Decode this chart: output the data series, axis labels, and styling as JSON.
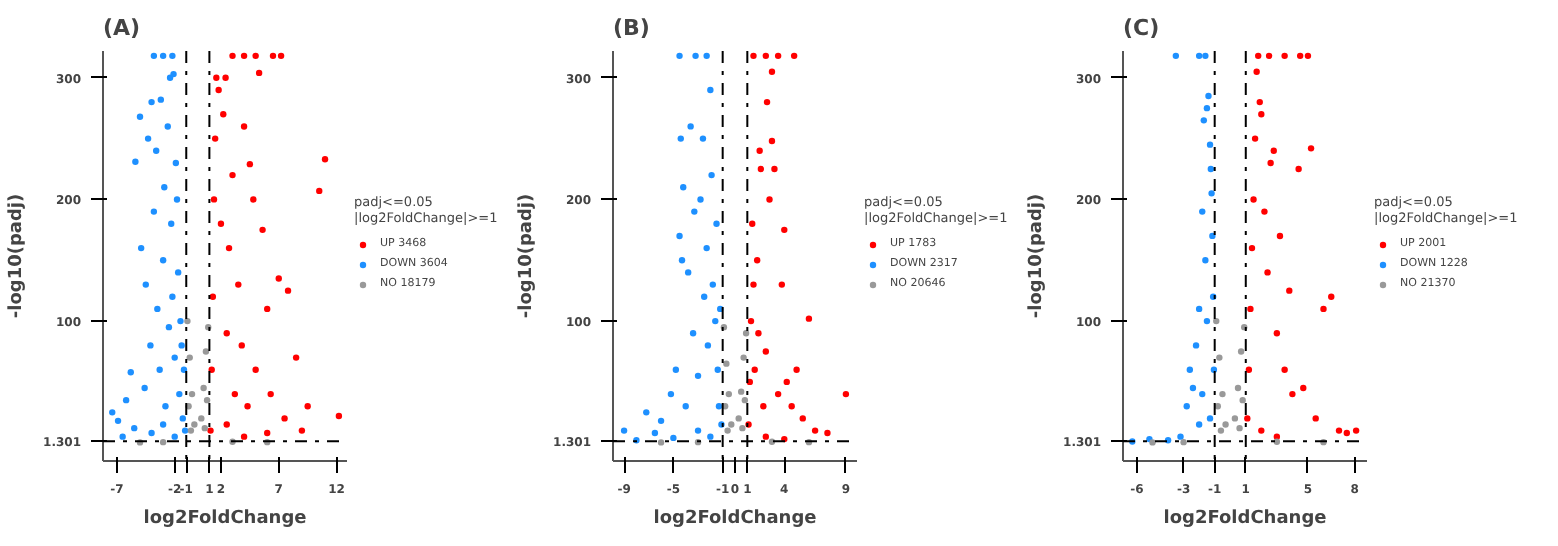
{
  "chart_data": [
    {
      "type": "scatter",
      "title": "(A)",
      "xlabel": "log2FoldChange",
      "ylabel": "-log10(padj)",
      "legend_title": "padj<=0.05\n|log2FoldChange|>=1",
      "legend": "right",
      "grid": false,
      "marker": "circle",
      "xlim": [
        -8.2,
        12.9
      ],
      "ylim": [
        -15,
        322
      ],
      "xticks": [
        -7,
        -2,
        -1,
        1,
        2,
        7,
        12
      ],
      "yticks": [
        1.301,
        100,
        200,
        300
      ],
      "ref_lines": [
        {
          "axis": "x",
          "value": -1,
          "line_style": "dashdot"
        },
        {
          "axis": "x",
          "value": 1,
          "line_style": "dashdot"
        },
        {
          "axis": "y",
          "value": 1.301,
          "line_style": "dashdot"
        }
      ],
      "series": [
        {
          "name": "UP 3468",
          "color": "#ff0000",
          "x": [
            1.1,
            1.2,
            1.3,
            1.4,
            1.5,
            1.6,
            1.8,
            2.0,
            2.2,
            2.4,
            2.5,
            2.7,
            3.0,
            3.2,
            3.5,
            3.8,
            4.0,
            4.3,
            4.5,
            4.8,
            5.0,
            5.3,
            5.6,
            6.0,
            6.3,
            7.0,
            7.5,
            7.8,
            8.5,
            9.5,
            10.5,
            11.0,
            12.2,
            9.0,
            6.0,
            4.0,
            2.5,
            3.0,
            4.0,
            5.0,
            7.2,
            6.5
          ],
          "values": [
            10,
            60,
            120,
            200,
            250,
            300,
            290,
            180,
            270,
            300,
            90,
            160,
            220,
            40,
            130,
            80,
            260,
            30,
            229,
            200,
            60,
            304,
            175,
            110,
            40,
            135,
            20,
            125,
            70,
            30,
            207,
            233,
            22,
            10,
            8,
            5,
            15,
            318,
            318,
            318,
            318,
            318
          ]
        },
        {
          "name": "DOWN 3604",
          "color": "#1e90ff",
          "x": [
            -7.4,
            -6.9,
            -6.2,
            -5.8,
            -5.4,
            -5.0,
            -4.9,
            -4.6,
            -4.5,
            -4.3,
            -4.1,
            -4.0,
            -3.8,
            -3.6,
            -3.5,
            -3.3,
            -3.2,
            -3.0,
            -2.9,
            -2.8,
            -2.6,
            -2.5,
            -2.4,
            -2.3,
            -2.2,
            -2.1,
            -2.0,
            -1.9,
            -1.8,
            -1.7,
            -1.6,
            -1.5,
            -1.4,
            -1.3,
            -1.2,
            -1.1,
            -5.5,
            -4.0,
            -3.0,
            -2.0,
            -6.5,
            -3.8,
            -3.0,
            -2.2
          ],
          "values": [
            25,
            18,
            35,
            58,
            231,
            268,
            160,
            45,
            130,
            250,
            80,
            280,
            190,
            240,
            110,
            60,
            282,
            150,
            210,
            30,
            260,
            95,
            300,
            180,
            120,
            303,
            70,
            230,
            200,
            140,
            40,
            100,
            80,
            20,
            60,
            10,
            12,
            8,
            15,
            5,
            5,
            318,
            318,
            318
          ]
        },
        {
          "name": "NO 18179",
          "color": "#999999",
          "x": [
            -0.9,
            -0.8,
            -0.7,
            -0.6,
            -0.5,
            -0.3,
            0.3,
            0.5,
            0.6,
            0.7,
            0.8,
            0.9,
            -3.0,
            3.0,
            -5.0,
            6.0
          ],
          "values": [
            100,
            30,
            70,
            10,
            40,
            15,
            20,
            45,
            12,
            75,
            35,
            95,
            0.5,
            0.8,
            0.3,
            0.5
          ]
        }
      ]
    },
    {
      "type": "scatter",
      "title": "(B)",
      "xlabel": "log2FoldChange",
      "ylabel": "-log10(padj)",
      "legend_title": "padj<=0.05\n|log2FoldChange|>=1",
      "legend": "right",
      "grid": false,
      "marker": "circle",
      "xlim": [
        -9.9,
        9.9
      ],
      "ylim": [
        -15,
        322
      ],
      "xticks": [
        -9,
        -5,
        -1,
        0,
        1,
        4,
        9
      ],
      "yticks": [
        1.301,
        100,
        200,
        300
      ],
      "ref_lines": [
        {
          "axis": "x",
          "value": -1,
          "line_style": "dashdot"
        },
        {
          "axis": "x",
          "value": 1,
          "line_style": "dashdot"
        },
        {
          "axis": "y",
          "value": 1.301,
          "line_style": "dashdot"
        }
      ],
      "series": [
        {
          "name": "UP 1783",
          "color": "#ff0000",
          "x": [
            1.1,
            1.2,
            1.3,
            1.4,
            1.5,
            1.6,
            1.8,
            1.9,
            2.0,
            2.1,
            2.3,
            2.5,
            2.6,
            2.8,
            3.0,
            3.0,
            3.2,
            3.5,
            3.8,
            4.0,
            4.2,
            4.6,
            5.0,
            5.5,
            6.0,
            6.5,
            7.5,
            9.0,
            2.5,
            4.0,
            1.5,
            2.5,
            3.5,
            4.8
          ],
          "values": [
            15,
            50,
            100,
            180,
            130,
            60,
            150,
            90,
            240,
            225,
            30,
            75,
            280,
            200,
            248,
            305,
            225,
            40,
            130,
            175,
            50,
            30,
            60,
            20,
            102,
            10,
            8,
            40,
            5,
            3,
            318,
            318,
            318,
            318
          ]
        },
        {
          "name": "DOWN 2317",
          "color": "#1e90ff",
          "x": [
            -9.0,
            -7.2,
            -6.5,
            -6.0,
            -5.2,
            -4.8,
            -4.5,
            -4.4,
            -4.3,
            -4.2,
            -4.0,
            -3.8,
            -3.6,
            -3.4,
            -3.3,
            -3.0,
            -2.8,
            -2.6,
            -2.5,
            -2.3,
            -2.2,
            -2.0,
            -1.9,
            -1.8,
            -1.6,
            -1.5,
            -1.4,
            -1.3,
            -1.2,
            -1.1,
            -5.0,
            -3.0,
            -2.0,
            -8.0,
            -4.5,
            -3.2,
            -2.3
          ],
          "values": [
            10,
            25,
            8,
            18,
            40,
            60,
            170,
            250,
            150,
            210,
            30,
            140,
            260,
            90,
            190,
            55,
            200,
            250,
            120,
            160,
            80,
            290,
            220,
            130,
            100,
            180,
            60,
            30,
            110,
            15,
            4,
            10,
            5,
            2,
            318,
            318,
            318
          ]
        },
        {
          "name": "NO 20646",
          "color": "#999999",
          "x": [
            -0.9,
            -0.8,
            -0.7,
            -0.6,
            -0.5,
            -0.3,
            0.3,
            0.5,
            0.6,
            0.7,
            0.8,
            0.9,
            -3.0,
            3.0,
            -6.0,
            6.0
          ],
          "values": [
            95,
            30,
            65,
            10,
            40,
            15,
            20,
            42,
            12,
            70,
            35,
            90,
            0.5,
            0.8,
            0.3,
            0.5
          ]
        }
      ]
    },
    {
      "type": "scatter",
      "title": "(C)",
      "xlabel": "log2FoldChange",
      "ylabel": "-log10(padj)",
      "legend_title": "padj<=0.05\n|log2FoldChange|>=1",
      "legend": "right",
      "grid": false,
      "marker": "circle",
      "xlim": [
        -6.9,
        8.8
      ],
      "ylim": [
        -15,
        322
      ],
      "xticks": [
        -6,
        -3,
        -1,
        1,
        5,
        8
      ],
      "yticks": [
        1.301,
        100,
        200,
        300
      ],
      "ref_lines": [
        {
          "axis": "x",
          "value": -1,
          "line_style": "dashdot"
        },
        {
          "axis": "x",
          "value": 1,
          "line_style": "dashdot"
        },
        {
          "axis": "y",
          "value": 1.301,
          "line_style": "dashdot"
        }
      ],
      "series": [
        {
          "name": "UP 2001",
          "color": "#ff0000",
          "x": [
            1.1,
            1.2,
            1.3,
            1.4,
            1.5,
            1.6,
            1.7,
            1.9,
            2.0,
            2.2,
            2.4,
            2.6,
            2.8,
            3.0,
            3.2,
            3.5,
            3.8,
            4.0,
            4.4,
            4.7,
            5.2,
            5.5,
            6.0,
            6.5,
            7.0,
            7.5,
            8.1,
            2.0,
            3.0,
            1.8,
            2.5,
            3.5,
            4.5,
            5.0
          ],
          "values": [
            20,
            60,
            110,
            160,
            200,
            250,
            305,
            280,
            270,
            190,
            140,
            230,
            240,
            90,
            170,
            60,
            125,
            40,
            225,
            45,
            242,
            20,
            110,
            120,
            10,
            8,
            10,
            10,
            5,
            318,
            318,
            318,
            318,
            318
          ]
        },
        {
          "name": "DOWN 1228",
          "color": "#1e90ff",
          "x": [
            -6.3,
            -5.2,
            -4.0,
            -3.2,
            -2.8,
            -2.6,
            -2.4,
            -2.2,
            -2.0,
            -1.8,
            -1.7,
            -1.6,
            -1.5,
            -1.4,
            -1.3,
            -1.25,
            -1.2,
            -1.15,
            -1.1,
            -1.05,
            -1.5,
            -1.8,
            -2.0,
            -1.3,
            -3.5,
            -2.0,
            -1.6
          ],
          "values": [
            1,
            3,
            2,
            5,
            30,
            60,
            45,
            80,
            110,
            190,
            265,
            150,
            275,
            285,
            245,
            225,
            205,
            170,
            120,
            60,
            100,
            40,
            15,
            20,
            318,
            318,
            318
          ]
        },
        {
          "name": "NO 21370",
          "color": "#999999",
          "x": [
            -0.9,
            -0.8,
            -0.7,
            -0.6,
            -0.5,
            -0.3,
            0.3,
            0.5,
            0.6,
            0.7,
            0.8,
            0.9,
            -3.0,
            3.0,
            -5.0,
            6.0
          ],
          "values": [
            100,
            30,
            70,
            10,
            40,
            15,
            20,
            45,
            12,
            75,
            35,
            95,
            0.5,
            0.8,
            0.3,
            0.5
          ]
        }
      ]
    }
  ]
}
